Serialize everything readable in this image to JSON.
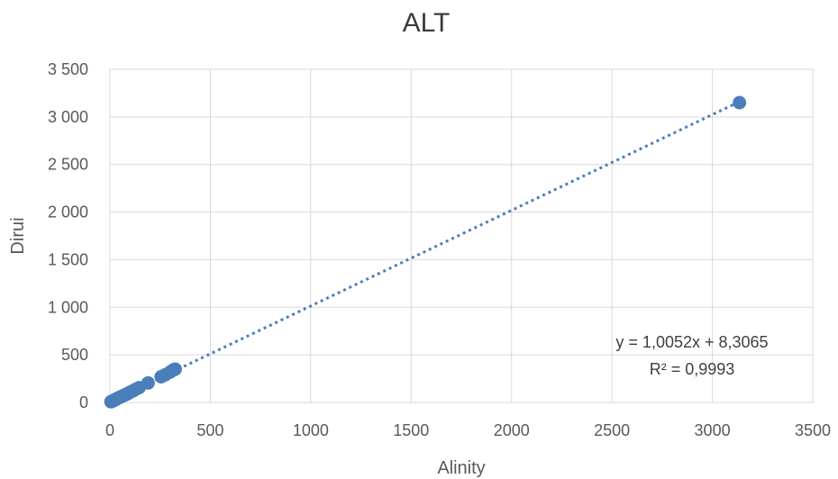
{
  "chart_data": {
    "type": "scatter",
    "title": "ALT",
    "xlabel": "Alinity",
    "ylabel": "Dirui",
    "xlim": [
      0,
      3500
    ],
    "ylim": [
      0,
      3500
    ],
    "x_ticks": [
      0,
      500,
      1000,
      1500,
      2000,
      2500,
      3000,
      3500
    ],
    "y_ticks": [
      0,
      500,
      1000,
      1500,
      2000,
      2500,
      3000,
      3500
    ],
    "x_tick_labels": [
      "0",
      "500",
      "1000",
      "1500",
      "2000",
      "2500",
      "3000",
      "3500"
    ],
    "y_tick_labels": [
      "0",
      "500",
      "1 000",
      "1 500",
      "2 000",
      "2 500",
      "3 000",
      "3 500"
    ],
    "grid": true,
    "legend": "none",
    "color": "#4a7ebb",
    "series": [
      {
        "points": [
          [
            5,
            8
          ],
          [
            10,
            12
          ],
          [
            15,
            18
          ],
          [
            20,
            22
          ],
          [
            25,
            28
          ],
          [
            30,
            34
          ],
          [
            40,
            45
          ],
          [
            50,
            55
          ],
          [
            60,
            65
          ],
          [
            70,
            75
          ],
          [
            80,
            85
          ],
          [
            90,
            95
          ],
          [
            100,
            108
          ],
          [
            115,
            122
          ],
          [
            125,
            135
          ],
          [
            145,
            155
          ],
          [
            190,
            205
          ],
          [
            255,
            270
          ],
          [
            275,
            290
          ],
          [
            300,
            320
          ],
          [
            315,
            340
          ],
          [
            325,
            350
          ],
          [
            3135,
            3150
          ]
        ]
      }
    ],
    "trendline": {
      "type": "linear",
      "slope": 1.0052,
      "intercept": 8.3065,
      "x_range": [
        0,
        3135
      ],
      "equation": "y = 1,0052x + 8,3065",
      "r_squared": "R² = 0,9993"
    }
  }
}
